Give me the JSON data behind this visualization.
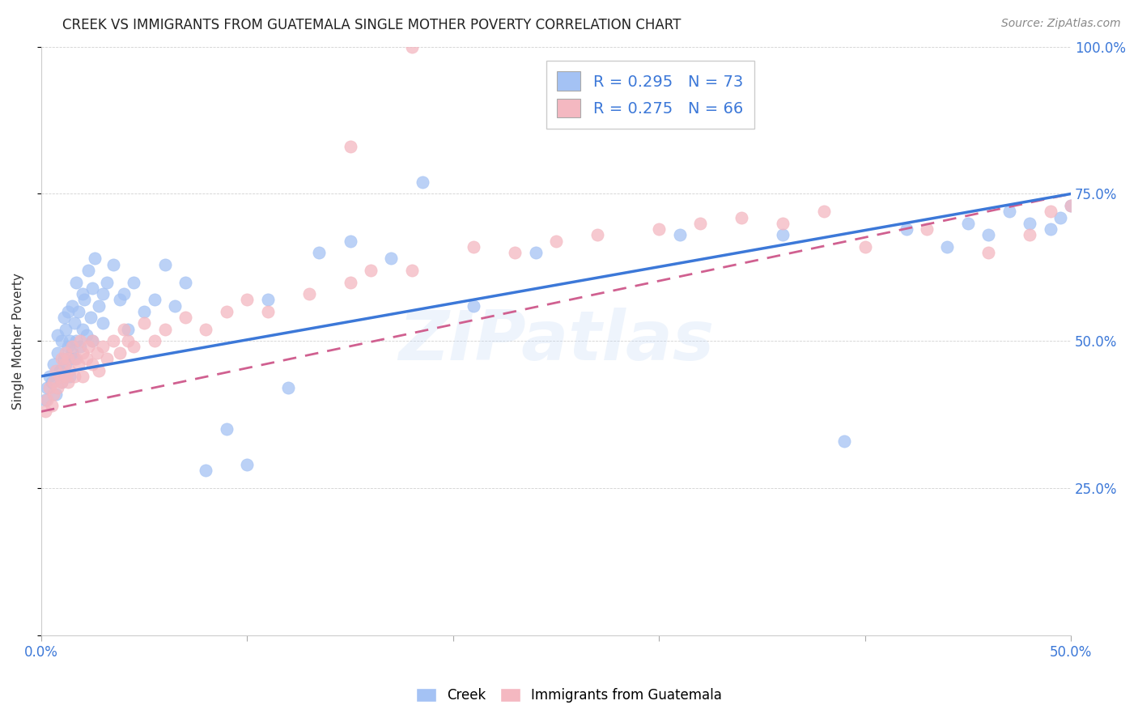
{
  "title": "CREEK VS IMMIGRANTS FROM GUATEMALA SINGLE MOTHER POVERTY CORRELATION CHART",
  "source": "Source: ZipAtlas.com",
  "ylabel": "Single Mother Poverty",
  "xlim": [
    0,
    0.5
  ],
  "ylim": [
    0,
    1.0
  ],
  "creek_R": 0.295,
  "creek_N": 73,
  "guatemala_R": 0.275,
  "guatemala_N": 66,
  "creek_color": "#a4c2f4",
  "guatemala_color": "#f4b8c1",
  "creek_line_color": "#3c78d8",
  "guatemala_line_color": "#d06090",
  "watermark": "ZIPatlas",
  "creek_scatter_x": [
    0.002,
    0.003,
    0.004,
    0.005,
    0.006,
    0.007,
    0.008,
    0.008,
    0.009,
    0.01,
    0.01,
    0.011,
    0.011,
    0.012,
    0.012,
    0.013,
    0.013,
    0.014,
    0.014,
    0.015,
    0.015,
    0.016,
    0.016,
    0.017,
    0.017,
    0.018,
    0.019,
    0.02,
    0.02,
    0.021,
    0.022,
    0.023,
    0.024,
    0.025,
    0.025,
    0.026,
    0.028,
    0.03,
    0.03,
    0.032,
    0.035,
    0.038,
    0.04,
    0.042,
    0.045,
    0.05,
    0.055,
    0.06,
    0.065,
    0.07,
    0.08,
    0.09,
    0.1,
    0.11,
    0.12,
    0.135,
    0.15,
    0.17,
    0.185,
    0.21,
    0.24,
    0.31,
    0.36,
    0.39,
    0.42,
    0.44,
    0.45,
    0.46,
    0.47,
    0.48,
    0.49,
    0.495,
    0.5
  ],
  "creek_scatter_y": [
    0.4,
    0.42,
    0.44,
    0.43,
    0.46,
    0.41,
    0.48,
    0.51,
    0.45,
    0.5,
    0.43,
    0.54,
    0.47,
    0.52,
    0.46,
    0.55,
    0.49,
    0.5,
    0.44,
    0.56,
    0.48,
    0.53,
    0.47,
    0.6,
    0.5,
    0.55,
    0.49,
    0.58,
    0.52,
    0.57,
    0.51,
    0.62,
    0.54,
    0.59,
    0.5,
    0.64,
    0.56,
    0.58,
    0.53,
    0.6,
    0.63,
    0.57,
    0.58,
    0.52,
    0.6,
    0.55,
    0.57,
    0.63,
    0.56,
    0.6,
    0.28,
    0.35,
    0.29,
    0.57,
    0.42,
    0.65,
    0.67,
    0.64,
    0.77,
    0.56,
    0.65,
    0.68,
    0.68,
    0.33,
    0.69,
    0.66,
    0.7,
    0.68,
    0.72,
    0.7,
    0.69,
    0.71,
    0.73
  ],
  "guatemala_scatter_x": [
    0.002,
    0.003,
    0.004,
    0.005,
    0.006,
    0.006,
    0.007,
    0.008,
    0.009,
    0.01,
    0.01,
    0.011,
    0.012,
    0.012,
    0.013,
    0.013,
    0.014,
    0.015,
    0.016,
    0.017,
    0.018,
    0.019,
    0.02,
    0.02,
    0.022,
    0.023,
    0.025,
    0.025,
    0.027,
    0.028,
    0.03,
    0.032,
    0.035,
    0.038,
    0.04,
    0.042,
    0.045,
    0.05,
    0.055,
    0.06,
    0.07,
    0.08,
    0.09,
    0.1,
    0.11,
    0.13,
    0.15,
    0.16,
    0.18,
    0.21,
    0.23,
    0.25,
    0.27,
    0.3,
    0.32,
    0.34,
    0.36,
    0.38,
    0.4,
    0.43,
    0.46,
    0.48,
    0.49,
    0.5,
    0.15,
    0.18
  ],
  "guatemala_scatter_y": [
    0.38,
    0.4,
    0.42,
    0.39,
    0.43,
    0.41,
    0.45,
    0.42,
    0.44,
    0.43,
    0.47,
    0.46,
    0.44,
    0.48,
    0.43,
    0.47,
    0.45,
    0.49,
    0.44,
    0.47,
    0.46,
    0.5,
    0.48,
    0.44,
    0.47,
    0.49,
    0.46,
    0.5,
    0.48,
    0.45,
    0.49,
    0.47,
    0.5,
    0.48,
    0.52,
    0.5,
    0.49,
    0.53,
    0.5,
    0.52,
    0.54,
    0.52,
    0.55,
    0.57,
    0.55,
    0.58,
    0.6,
    0.62,
    0.62,
    0.66,
    0.65,
    0.67,
    0.68,
    0.69,
    0.7,
    0.71,
    0.7,
    0.72,
    0.66,
    0.69,
    0.65,
    0.68,
    0.72,
    0.73,
    0.83,
    1.0
  ],
  "creek_line_x0": 0.0,
  "creek_line_y0": 0.44,
  "creek_line_x1": 0.5,
  "creek_line_y1": 0.75,
  "guate_line_x0": 0.0,
  "guate_line_y0": 0.38,
  "guate_line_x1": 0.5,
  "guate_line_y1": 0.75
}
